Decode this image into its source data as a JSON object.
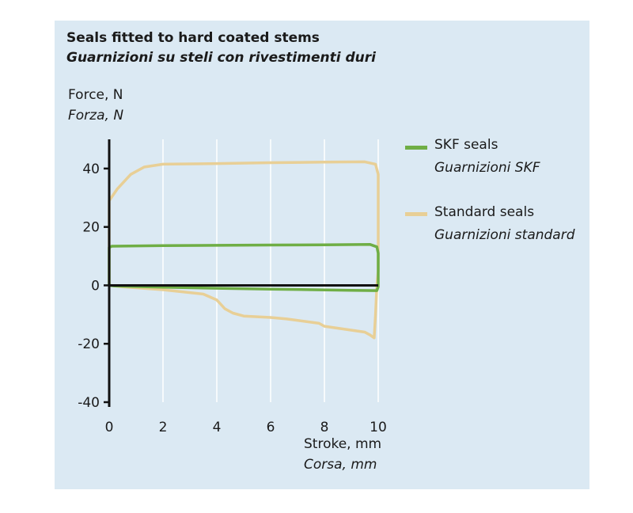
{
  "chart_data": {
    "type": "line",
    "title": "Seals fitted to hard coated stems",
    "subtitle": "Guarnizioni su steli con rivestimenti duri",
    "ylabel": "Force, N",
    "ylabel_alt": "Forza, N",
    "xlabel": "Stroke, mm",
    "xlabel_alt": "Corsa, mm",
    "xlim": [
      0,
      10
    ],
    "ylim": [
      -40,
      50
    ],
    "xticks": [
      0,
      2,
      4,
      6,
      8,
      10
    ],
    "yticks": [
      -40,
      -20,
      0,
      20,
      40
    ],
    "grid": "vertical",
    "legend_position": "right",
    "series": [
      {
        "name": "SKF seals",
        "name_alt": "Guarnizioni SKF",
        "color": "#6fae45",
        "points": [
          [
            0,
            0
          ],
          [
            0,
            13
          ],
          [
            0.1,
            13.4
          ],
          [
            2,
            13.6
          ],
          [
            4,
            13.7
          ],
          [
            6,
            13.8
          ],
          [
            8,
            13.9
          ],
          [
            9.7,
            14
          ],
          [
            9.95,
            13.2
          ],
          [
            10,
            11
          ],
          [
            10,
            -0.5
          ],
          [
            9.95,
            -1.8
          ],
          [
            9,
            -1.7
          ],
          [
            6,
            -1.3
          ],
          [
            4,
            -1
          ],
          [
            2,
            -0.6
          ],
          [
            0.2,
            -0.2
          ],
          [
            0,
            0
          ]
        ]
      },
      {
        "name": "Standard seals",
        "name_alt": "Guarnizioni standard",
        "color": "#e8cf96",
        "points": [
          [
            0,
            0
          ],
          [
            0,
            29
          ],
          [
            0.3,
            33
          ],
          [
            0.8,
            38
          ],
          [
            1.3,
            40.5
          ],
          [
            2,
            41.5
          ],
          [
            4,
            41.7
          ],
          [
            6,
            42
          ],
          [
            8,
            42.2
          ],
          [
            9.5,
            42.3
          ],
          [
            9.9,
            41.5
          ],
          [
            10,
            38
          ],
          [
            10,
            5
          ],
          [
            9.95,
            0
          ],
          [
            9.9,
            -10
          ],
          [
            9.85,
            -18
          ],
          [
            9.7,
            -17
          ],
          [
            9.5,
            -16
          ],
          [
            8,
            -14
          ],
          [
            7.8,
            -13
          ],
          [
            6.6,
            -11.5
          ],
          [
            6,
            -11
          ],
          [
            5,
            -10.5
          ],
          [
            4.6,
            -9.5
          ],
          [
            4.3,
            -8
          ],
          [
            4,
            -5
          ],
          [
            3.5,
            -3
          ],
          [
            2,
            -1.5
          ],
          [
            0.5,
            -0.5
          ],
          [
            0,
            0
          ]
        ]
      }
    ]
  }
}
